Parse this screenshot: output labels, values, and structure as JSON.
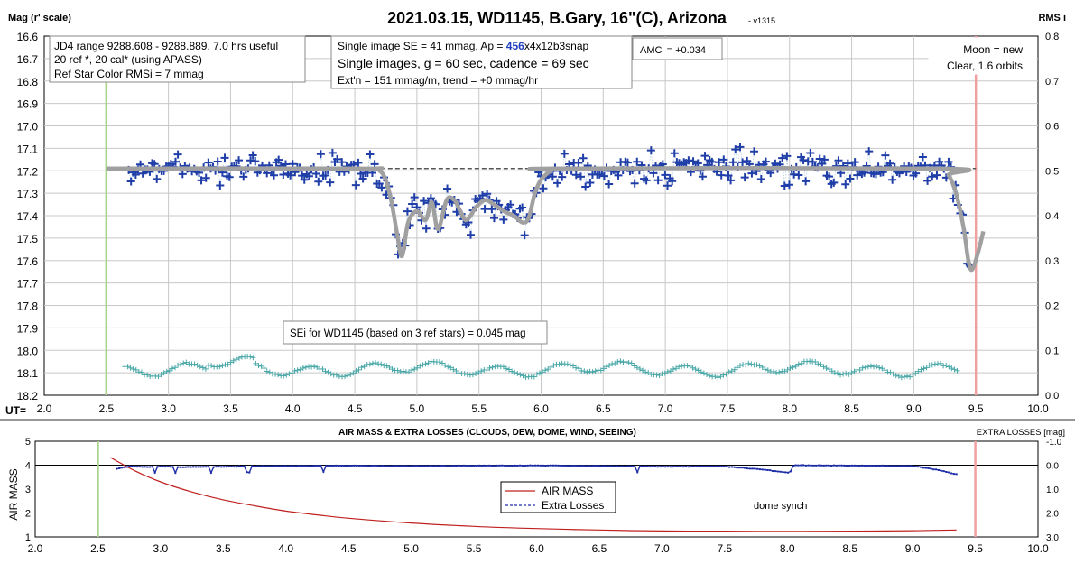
{
  "chart_data": [
    {
      "type": "scatter",
      "title": "2021.03.15, WD1145, B.Gary, 16\"(C), Arizona",
      "version": "- v1315",
      "ylabel": "Mag (r' scale)",
      "y2label": "RMS i",
      "xlabel": "UT=",
      "xlim": [
        2.0,
        10.0
      ],
      "ylim": [
        16.6,
        18.2
      ],
      "y_inverted": true,
      "y2lim": [
        0.0,
        0.8
      ],
      "x_ticks": [
        "2.0",
        "2.5",
        "3.0",
        "3.5",
        "4.0",
        "4.5",
        "5.0",
        "5.5",
        "6.0",
        "6.5",
        "7.0",
        "7.5",
        "8.0",
        "8.5",
        "9.0",
        "9.5",
        "10.0"
      ],
      "y_ticks": [
        "16.6",
        "16.7",
        "16.8",
        "16.9",
        "17.0",
        "17.1",
        "17.2",
        "17.3",
        "17.4",
        "17.5",
        "17.6",
        "17.7",
        "17.8",
        "17.9",
        "18.0",
        "18.1",
        "18.2"
      ],
      "y2_ticks": [
        "0.8",
        "0.7",
        "0.6",
        "0.5",
        "0.4",
        "0.3",
        "0.2",
        "0.1",
        "0.0"
      ],
      "grid": true,
      "vlines": [
        {
          "x": 2.5,
          "color": "#a8d58a"
        },
        {
          "x": 9.5,
          "color": "#f0a0a0"
        }
      ],
      "baseline_mag": 17.19,
      "annotations": {
        "box1": [
          "JD4 range 9288.608 - 9288.889, 7.0 hrs useful",
          "20 ref *, 20 cal* (using APASS)",
          "Ref Star Color RMSi = 7 mmag"
        ],
        "box2_line1_pre": "Single image SE = 41 mmag, Ap = ",
        "box2_line1_ap": "456",
        "box2_line1_post": "x4x12b3snap",
        "box2_line2": "Single images, g = 60 sec, cadence = 69 sec",
        "box2_line3": "Ext'n = 151 mmag/m, trend = +0 mmag/hr",
        "amc": "AMC' = +0.034",
        "moon": [
          "Moon = new",
          "Clear, 1.6 orbits"
        ],
        "sei": "SEi for WD1145 (based on 3 ref stars) = 0.045 mag"
      },
      "series": [
        {
          "name": "",
          "kind": "points",
          "color": "#1f3ea8",
          "x_range": [
            2.68,
            9.45
          ]
        },
        {
          "name": "",
          "kind": "model",
          "color": "#a0a0a0",
          "points": [
            [
              2.5,
              17.19
            ],
            [
              4.5,
              17.19
            ],
            [
              4.7,
              17.2
            ],
            [
              4.78,
              17.3
            ],
            [
              4.84,
              17.48
            ],
            [
              4.88,
              17.58
            ],
            [
              4.93,
              17.43
            ],
            [
              5.0,
              17.38
            ],
            [
              5.07,
              17.42
            ],
            [
              5.12,
              17.34
            ],
            [
              5.17,
              17.46
            ],
            [
              5.24,
              17.33
            ],
            [
              5.3,
              17.33
            ],
            [
              5.35,
              17.38
            ],
            [
              5.4,
              17.42
            ],
            [
              5.48,
              17.36
            ],
            [
              5.55,
              17.33
            ],
            [
              5.62,
              17.35
            ],
            [
              5.7,
              17.38
            ],
            [
              5.78,
              17.4
            ],
            [
              5.85,
              17.43
            ],
            [
              5.9,
              17.41
            ],
            [
              5.95,
              17.3
            ],
            [
              6.0,
              17.24
            ],
            [
              6.08,
              17.2
            ],
            [
              6.15,
              17.19
            ],
            [
              9.2,
              17.19
            ],
            [
              9.28,
              17.22
            ],
            [
              9.34,
              17.3
            ],
            [
              9.4,
              17.45
            ],
            [
              9.44,
              17.6
            ],
            [
              9.47,
              17.64
            ],
            [
              9.52,
              17.56
            ],
            [
              9.56,
              17.47
            ]
          ]
        },
        {
          "name": "",
          "kind": "rms",
          "color": "#4aa8a8",
          "x_range": [
            2.65,
            9.35
          ]
        }
      ]
    },
    {
      "type": "line",
      "title": "AIR MASS & EXTRA LOSSES (CLOUDS, DEW, DOME, WIND, SEEING)",
      "ylabel": "AIR MASS",
      "y2label": "EXTRA LOSSES [mag]",
      "xlim": [
        2.0,
        10.0
      ],
      "ylim": [
        1,
        5
      ],
      "y2lim": [
        -1.0,
        3.0
      ],
      "x_ticks": [
        "2.0",
        "2.5",
        "3.0",
        "3.5",
        "4.0",
        "4.5",
        "5.0",
        "5.5",
        "6.0",
        "6.5",
        "7.0",
        "7.5",
        "8.0",
        "8.5",
        "9.0",
        "9.5",
        "10.0"
      ],
      "y_ticks": [
        "5",
        "4",
        "3",
        "2",
        "1"
      ],
      "y2_ticks": [
        "-1.0",
        "0.0",
        "1.0",
        "2.0",
        "3.0"
      ],
      "grid": false,
      "legend": "center",
      "note": "dome synch",
      "vlines": [
        {
          "x": 2.5,
          "color": "#a8d58a"
        },
        {
          "x": 9.5,
          "color": "#f0a0a0"
        }
      ],
      "series": [
        {
          "name": "AIR MASS",
          "color": "#c0201f",
          "points": [
            [
              2.6,
              4.32
            ],
            [
              2.8,
              3.75
            ],
            [
              3.0,
              3.3
            ],
            [
              3.25,
              2.88
            ],
            [
              3.5,
              2.55
            ],
            [
              3.75,
              2.3
            ],
            [
              4.0,
              2.08
            ],
            [
              4.25,
              1.92
            ],
            [
              4.5,
              1.78
            ],
            [
              5.0,
              1.58
            ],
            [
              5.5,
              1.44
            ],
            [
              6.0,
              1.35
            ],
            [
              6.5,
              1.29
            ],
            [
              7.0,
              1.25
            ],
            [
              7.5,
              1.24
            ],
            [
              8.0,
              1.23
            ],
            [
              8.5,
              1.24
            ],
            [
              9.0,
              1.26
            ],
            [
              9.35,
              1.29
            ]
          ]
        },
        {
          "name": "Extra Losses",
          "color": "#1f2fa8",
          "points": [
            [
              2.65,
              0.15
            ],
            [
              2.75,
              0.05
            ],
            [
              2.9,
              0.08
            ],
            [
              3.0,
              0.05
            ],
            [
              3.2,
              0.08
            ],
            [
              3.5,
              0.06
            ],
            [
              4.0,
              0.03
            ],
            [
              4.5,
              0.02
            ],
            [
              5.0,
              0.03
            ],
            [
              6.0,
              0.01
            ],
            [
              6.5,
              0.03
            ],
            [
              7.0,
              0.06
            ],
            [
              7.5,
              0.05
            ],
            [
              7.8,
              0.18
            ],
            [
              8.02,
              0.32
            ],
            [
              8.05,
              0.0
            ],
            [
              8.5,
              0.02
            ],
            [
              9.0,
              0.03
            ],
            [
              9.2,
              0.2
            ],
            [
              9.35,
              0.38
            ]
          ]
        }
      ]
    }
  ]
}
